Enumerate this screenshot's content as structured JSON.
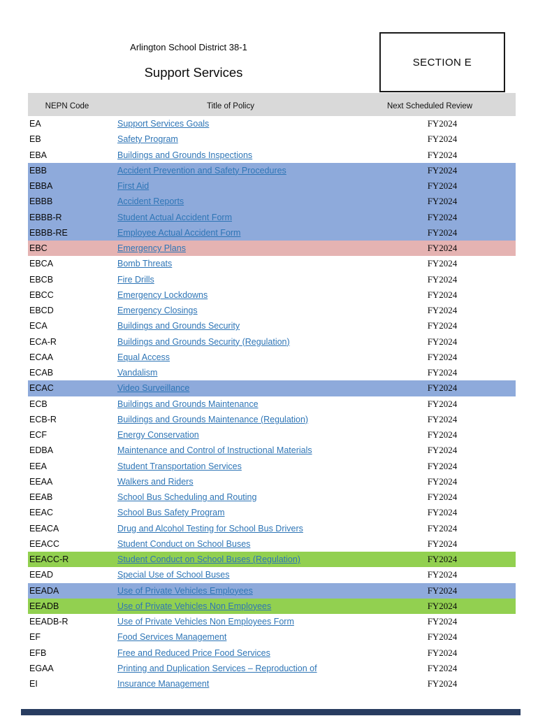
{
  "header": {
    "district": "Arlington School District 38-1",
    "title": "Support Services",
    "section_label": "SECTION E"
  },
  "table": {
    "columns": [
      "NEPN Code",
      "Title of Policy",
      "Next Scheduled Review"
    ],
    "rows": [
      {
        "code": "EA",
        "title": "Support Services Goals",
        "review": "FY2024",
        "highlight": "none"
      },
      {
        "code": "EB",
        "title": "Safety Program",
        "review": "FY2024",
        "highlight": "none"
      },
      {
        "code": "EBA",
        "title": "Buildings and Grounds Inspections",
        "review": "FY2024",
        "highlight": "none"
      },
      {
        "code": "EBB",
        "title": "Accident Prevention and Safety Procedures",
        "review": "FY2024",
        "highlight": "blue"
      },
      {
        "code": "EBBA",
        "title": "First Aid",
        "review": "FY2024",
        "highlight": "blue"
      },
      {
        "code": "EBBB",
        "title": "Accident Reports",
        "review": "FY2024",
        "highlight": "blue"
      },
      {
        "code": "EBBB-R",
        "title": "Student Actual Accident Form",
        "review": "FY2024",
        "highlight": "blue"
      },
      {
        "code": "EBBB-RE",
        "title": "Employee Actual Accident Form",
        "review": "FY2024",
        "highlight": "blue"
      },
      {
        "code": "EBC",
        "title": "Emergency Plans",
        "review": "FY2024",
        "highlight": "red"
      },
      {
        "code": "EBCA",
        "title": "Bomb Threats",
        "review": "FY2024",
        "highlight": "none"
      },
      {
        "code": "EBCB",
        "title": "Fire Drills",
        "review": "FY2024",
        "highlight": "none"
      },
      {
        "code": "EBCC",
        "title": "Emergency Lockdowns",
        "review": "FY2024",
        "highlight": "none"
      },
      {
        "code": "EBCD",
        "title": "Emergency Closings",
        "review": "FY2024",
        "highlight": "none"
      },
      {
        "code": "ECA",
        "title": "Buildings and Grounds Security",
        "review": "FY2024",
        "highlight": "none"
      },
      {
        "code": "ECA-R",
        "title": "Buildings and Grounds Security (Regulation)",
        "review": "FY2024",
        "highlight": "none"
      },
      {
        "code": "ECAA",
        "title": "Equal Access",
        "review": "FY2024",
        "highlight": "none"
      },
      {
        "code": "ECAB",
        "title": "Vandalism",
        "review": "FY2024",
        "highlight": "none"
      },
      {
        "code": "ECAC",
        "title": "Video Surveillance",
        "review": "FY2024",
        "highlight": "blue"
      },
      {
        "code": "ECB",
        "title": "Buildings and Grounds Maintenance",
        "review": "FY2024",
        "highlight": "none"
      },
      {
        "code": "ECB-R",
        "title": "Buildings and Grounds Maintenance (Regulation)",
        "review": "FY2024",
        "highlight": "none"
      },
      {
        "code": "ECF",
        "title": "Energy Conservation",
        "review": "FY2024",
        "highlight": "none"
      },
      {
        "code": "EDBA",
        "title": "Maintenance and Control of Instructional Materials",
        "review": "FY2024",
        "highlight": "none"
      },
      {
        "code": "EEA",
        "title": "Student Transportation Services",
        "review": "FY2024",
        "highlight": "none"
      },
      {
        "code": "EEAA",
        "title": "Walkers and Riders",
        "review": "FY2024",
        "highlight": "none"
      },
      {
        "code": "EEAB",
        "title": "School Bus Scheduling and Routing",
        "review": "FY2024",
        "highlight": "none"
      },
      {
        "code": "EEAC",
        "title": "School Bus Safety Program",
        "review": "FY2024",
        "highlight": "none"
      },
      {
        "code": "EEACA",
        "title": "Drug and Alcohol Testing for School Bus Drivers",
        "review": "FY2024",
        "highlight": "none"
      },
      {
        "code": "EEACC",
        "title": "Student Conduct on School Buses",
        "review": "FY2024",
        "highlight": "none"
      },
      {
        "code": "EEACC-R",
        "title": "Student Conduct on School Buses (Regulation)",
        "review": "FY2024",
        "highlight": "green"
      },
      {
        "code": "EEAD",
        "title": "Special Use of School Buses",
        "review": "FY2024",
        "highlight": "none"
      },
      {
        "code": "EEADA",
        "title": "Use of Private Vehicles Employees",
        "review": "FY2024",
        "highlight": "blue"
      },
      {
        "code": "EEADB",
        "title": "Use of Private Vehicles Non Employees",
        "review": "FY2024",
        "highlight": "green"
      },
      {
        "code": "EEADB-R",
        "title": "Use of Private Vehicles Non Employees Form",
        "review": "FY2024",
        "highlight": "none"
      },
      {
        "code": "EF",
        "title": "Food Services Management",
        "review": "FY2024",
        "highlight": "none"
      },
      {
        "code": "EFB",
        "title": "Free and Reduced Price Food Services",
        "review": "FY2024",
        "highlight": "none"
      },
      {
        "code": "EGAA",
        "title": "Printing and Duplication Services – Reproduction of",
        "review": "FY2024",
        "highlight": "none"
      },
      {
        "code": "EI",
        "title": "Insurance Management",
        "review": "FY2024",
        "highlight": "none"
      }
    ]
  },
  "colors": {
    "header_band": "#d9d9d9",
    "highlight_blue": "#8eaadb",
    "highlight_red": "#e5b3b2",
    "highlight_green": "#92d050",
    "link": "#2e75b6",
    "bottom_bar": "#283c60"
  }
}
